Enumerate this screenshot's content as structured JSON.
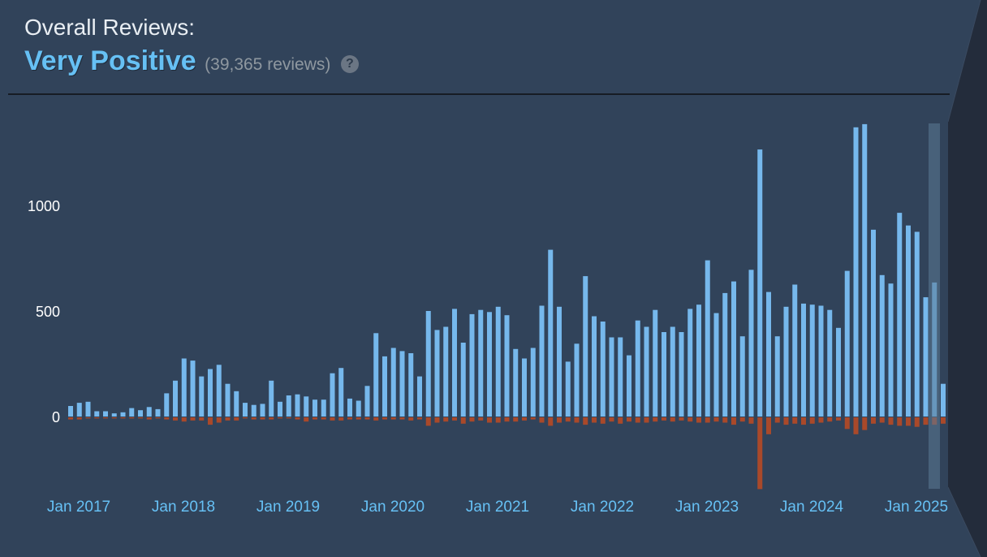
{
  "header": {
    "label": "Overall Reviews:",
    "summary": "Very Positive",
    "count": "(39,365 reviews)",
    "help_icon": "help-circle-icon",
    "help_glyph": "?"
  },
  "colors": {
    "positive": "#76b8ec",
    "negative": "#a9492a",
    "tick_label": "#66c0f4",
    "axis_label": "#ffffff",
    "background": "#31435a"
  },
  "chart_data": {
    "type": "bar",
    "title": "",
    "xlabel": "",
    "ylabel": "",
    "ylim": [
      -350,
      1400
    ],
    "yticks": [
      "1000",
      "500",
      "0"
    ],
    "ytick_values": [
      1000,
      500,
      0
    ],
    "xticks": [
      "Jan 2017",
      "Jan 2018",
      "Jan 2019",
      "Jan 2020",
      "Jan 2021",
      "Jan 2022",
      "Jan 2023",
      "Jan 2024",
      "Jan 2025"
    ],
    "xtick_indices": [
      0,
      12,
      24,
      36,
      48,
      60,
      72,
      84,
      96
    ],
    "series": [
      {
        "values": [
          50,
          65,
          70,
          25,
          25,
          15,
          20,
          40,
          30,
          45,
          35,
          110,
          170,
          275,
          265,
          190,
          225,
          245,
          155,
          120,
          65,
          55,
          60,
          170,
          70,
          100,
          105,
          95,
          80,
          80,
          205,
          230,
          85,
          75,
          145,
          395,
          285,
          325,
          310,
          300,
          190,
          500,
          410,
          425,
          510,
          350,
          485,
          505,
          495,
          520,
          480,
          320,
          275,
          325,
          525,
          790,
          520,
          260,
          345,
          665,
          475,
          450,
          375,
          375,
          290,
          455,
          425,
          505,
          400,
          425,
          400,
          510,
          530,
          740,
          490,
          585,
          640,
          380,
          695,
          1265,
          590,
          380,
          520,
          625,
          535,
          530,
          525,
          505,
          420,
          690,
          1370,
          1385,
          885,
          670,
          630,
          965,
          905,
          875,
          565,
          635,
          155
        ]
      },
      {
        "values": [
          -10,
          -10,
          -5,
          -5,
          -5,
          -5,
          -5,
          -5,
          -5,
          -10,
          -5,
          -10,
          -15,
          -20,
          -15,
          -15,
          -35,
          -25,
          -15,
          -15,
          -5,
          -10,
          -10,
          -10,
          -5,
          -5,
          -10,
          -20,
          -10,
          -10,
          -15,
          -15,
          -10,
          -10,
          -10,
          -15,
          -10,
          -10,
          -10,
          -15,
          -10,
          -40,
          -25,
          -20,
          -15,
          -30,
          -20,
          -15,
          -25,
          -25,
          -20,
          -20,
          -15,
          -10,
          -25,
          -40,
          -25,
          -20,
          -25,
          -35,
          -25,
          -30,
          -20,
          -30,
          -20,
          -25,
          -25,
          -20,
          -15,
          -20,
          -15,
          -20,
          -25,
          -25,
          -20,
          -25,
          -35,
          -20,
          -30,
          -340,
          -80,
          -25,
          -35,
          -30,
          -35,
          -30,
          -25,
          -20,
          -15,
          -55,
          -80,
          -60,
          -30,
          -25,
          -35,
          -40,
          -40,
          -45,
          -35,
          -35,
          -30
        ]
      }
    ]
  }
}
